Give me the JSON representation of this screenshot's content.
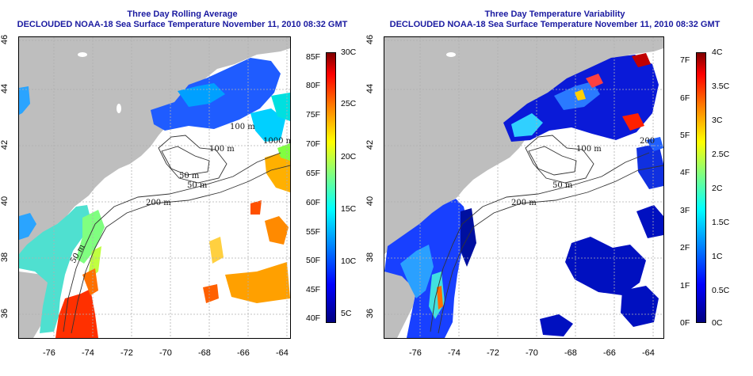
{
  "panels": [
    {
      "id": "average",
      "title_line1": "Three Day Rolling Average",
      "title_line2": "DECLOUDED NOAA-18 Sea Surface Temperature November 11, 2010 08:32 GMT",
      "contour_labels": [
        "50 m",
        "100 m",
        "100 m",
        "1000 m",
        "50 m",
        "200 m",
        "50 m"
      ],
      "colorbar_f_labels": [
        "85F",
        "80F",
        "75F",
        "70F",
        "65F",
        "60F",
        "55F",
        "50F",
        "45F",
        "40F"
      ],
      "colorbar_c_labels": [
        "30C",
        "25C",
        "20C",
        "15C",
        "10C",
        "5C"
      ],
      "colorbar_colors": [
        "#00007f",
        "#0000ff",
        "#0080ff",
        "#00ffff",
        "#80ff80",
        "#ffff00",
        "#ff8000",
        "#ff0000",
        "#7f0000"
      ]
    },
    {
      "id": "variability",
      "title_line1": "Three Day Temperature Variability",
      "title_line2": "DECLOUDED NOAA-18 Sea Surface Temperature November 11, 2010 08:32 GMT",
      "contour_labels": [
        "100 m",
        "50 m",
        "200 m",
        "200"
      ],
      "colorbar_f_labels": [
        "7F",
        "6F",
        "5F",
        "4F",
        "3F",
        "2F",
        "1F",
        "0F"
      ],
      "colorbar_c_labels": [
        "4C",
        "3.5C",
        "3C",
        "2.5C",
        "2C",
        "1.5C",
        "1C",
        "0.5C",
        "0C"
      ],
      "colorbar_colors": [
        "#00007f",
        "#0000ff",
        "#0080ff",
        "#00ffff",
        "#80ff80",
        "#ffff00",
        "#ff8000",
        "#ff0000",
        "#7f0000"
      ]
    }
  ],
  "x_ticks": [
    "-76",
    "-74",
    "-72",
    "-70",
    "-68",
    "-66",
    "-64"
  ],
  "y_ticks": [
    "36",
    "38",
    "40",
    "42",
    "44",
    "46"
  ],
  "colors": {
    "land": "#bebebe",
    "lake": "#ffffff",
    "no_data": "#ffffff",
    "title": "#1a1aa0",
    "grid": "#b0b0b0"
  }
}
